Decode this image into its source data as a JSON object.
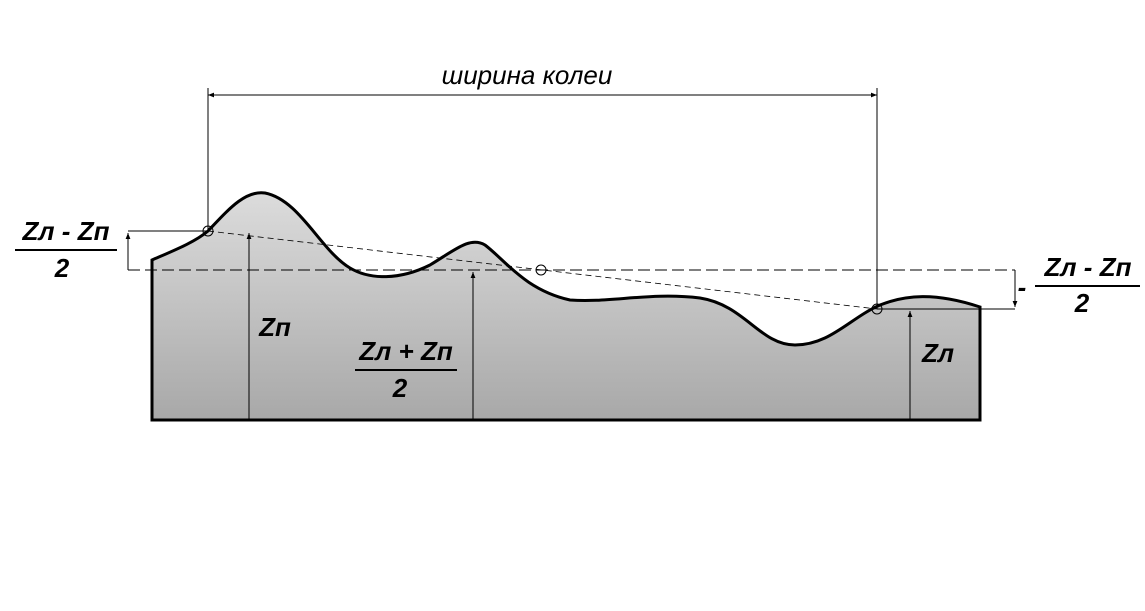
{
  "dimension": {
    "label": "ширина колеи"
  },
  "left_fraction": {
    "numerator": "Zл - Zп",
    "denominator": "2"
  },
  "center_fraction": {
    "numerator": "Zл + Zп",
    "denominator": "2"
  },
  "right_fraction": {
    "sign": "-",
    "numerator": "Zл - Zп",
    "denominator": "2"
  },
  "left_height": {
    "label": "Zп"
  },
  "right_height": {
    "label": "Zл"
  }
}
